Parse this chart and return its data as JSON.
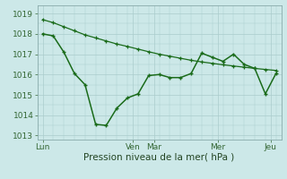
{
  "background_color": "#cce8e8",
  "grid_color": "#aacccc",
  "line_color": "#1a6b1a",
  "marker_color": "#1a6b1a",
  "xlabel": "Pression niveau de la mer( hPa )",
  "ylabel": "",
  "ylim": [
    1012.8,
    1019.4
  ],
  "xlim": [
    -0.5,
    22.5
  ],
  "xtick_positions": [
    0.0,
    8.5,
    10.5,
    16.5,
    21.5
  ],
  "xtick_labels": [
    "Lun",
    "Ven",
    "Mar",
    "Mer",
    "Jeu"
  ],
  "ytick_positions": [
    1013,
    1014,
    1015,
    1016,
    1017,
    1018,
    1019
  ],
  "ytick_labels": [
    "1013",
    "1014",
    "1015",
    "1016",
    "1017",
    "1018",
    "1019"
  ],
  "line1_x": [
    0,
    1,
    2,
    3,
    4,
    5,
    6,
    7,
    8,
    9,
    10,
    11,
    12,
    13,
    14,
    15,
    16,
    17,
    18,
    19,
    20,
    21,
    22
  ],
  "line1_y": [
    1018.7,
    1018.55,
    1018.35,
    1018.15,
    1017.95,
    1017.8,
    1017.65,
    1017.5,
    1017.38,
    1017.25,
    1017.12,
    1017.0,
    1016.9,
    1016.8,
    1016.7,
    1016.62,
    1016.55,
    1016.48,
    1016.42,
    1016.36,
    1016.3,
    1016.25,
    1016.2
  ],
  "line2_x": [
    0,
    1,
    2,
    3,
    4,
    5,
    6,
    7,
    8,
    9,
    10,
    11,
    12,
    13,
    14,
    15,
    16,
    17,
    18,
    19,
    20,
    21,
    22
  ],
  "line2_y": [
    1018.0,
    1017.9,
    1017.1,
    1016.05,
    1015.5,
    1013.55,
    1013.5,
    1014.35,
    1014.85,
    1015.05,
    1015.95,
    1016.0,
    1015.85,
    1015.85,
    1016.05,
    1017.05,
    1016.85,
    1016.65,
    1017.0,
    1016.5,
    1016.3,
    1015.05,
    1016.05
  ],
  "fontsize_tick": 6.5,
  "fontsize_xlabel": 7.5
}
